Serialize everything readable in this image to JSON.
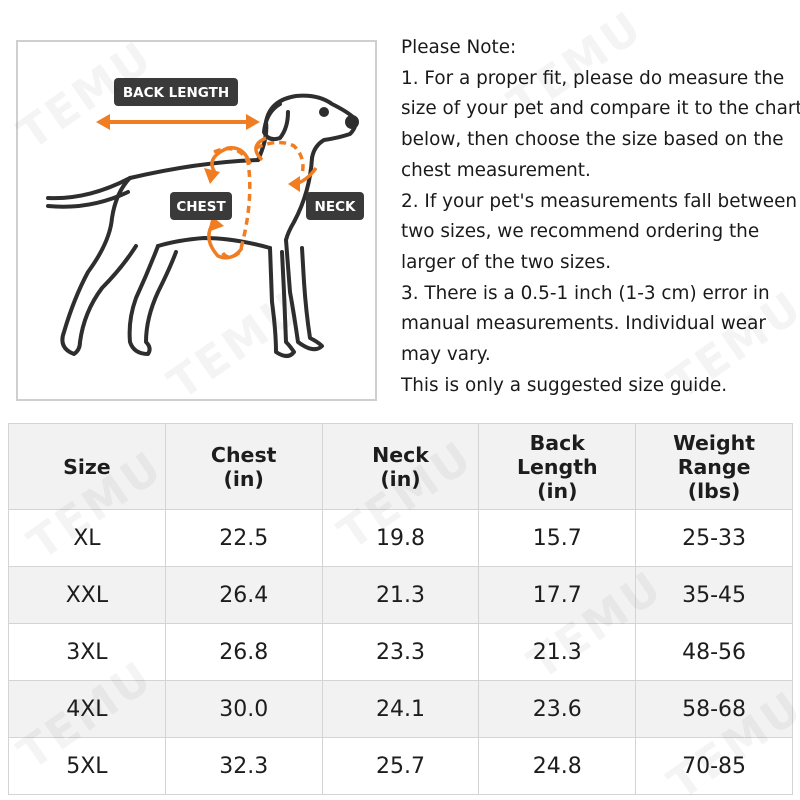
{
  "diagram": {
    "label_back_length": "BACK LENGTH",
    "label_chest": "CHEST",
    "label_neck": "NECK",
    "accent_color": "#f07d22",
    "tag_color": "#3a3a3a"
  },
  "notes": {
    "lines": [
      "Please Note:",
      "1. For a proper fit, please do measure the",
      "size of your pet and compare it to the chart",
      "below, then choose the size based on the",
      "chest measurement.",
      "2. If your pet's measurements fall between",
      "two sizes, we recommend ordering the",
      "larger of the two sizes.",
      "3. There is a 0.5-1 inch (1-3 cm) error in",
      "manual measurements. Individual wear",
      "may vary.",
      "This is only a suggested size guide."
    ]
  },
  "table": {
    "headers": [
      [
        "Size"
      ],
      [
        "Chest",
        "(in)"
      ],
      [
        "Neck",
        "(in)"
      ],
      [
        "Back",
        "Length",
        "(in)"
      ],
      [
        "Weight",
        "Range",
        "(lbs)"
      ]
    ],
    "rows": [
      [
        "XL",
        "22.5",
        "19.8",
        "15.7",
        "25-33"
      ],
      [
        "XXL",
        "26.4",
        "21.3",
        "17.7",
        "35-45"
      ],
      [
        "3XL",
        "26.8",
        "23.3",
        "21.3",
        "48-56"
      ],
      [
        "4XL",
        "30.0",
        "24.1",
        "23.6",
        "58-68"
      ],
      [
        "5XL",
        "32.3",
        "25.7",
        "24.8",
        "70-85"
      ]
    ]
  },
  "watermark": {
    "text": "TEMU"
  }
}
